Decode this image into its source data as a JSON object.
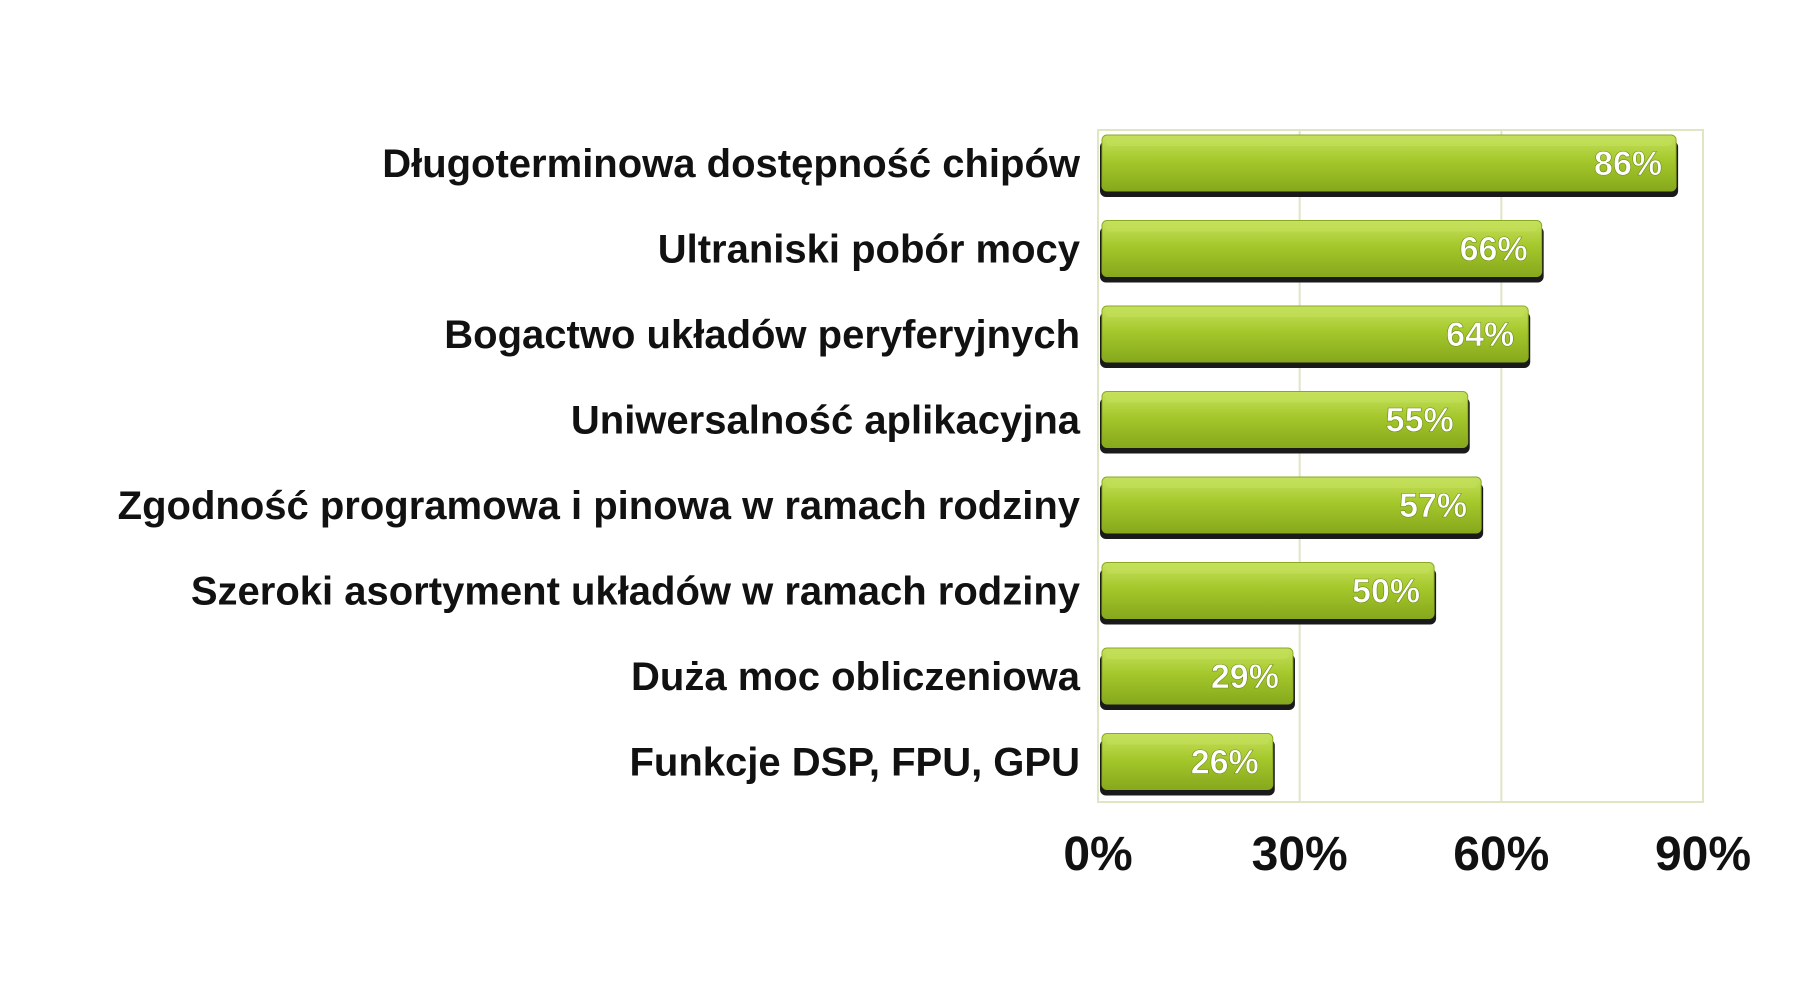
{
  "chart_data": {
    "type": "bar",
    "orientation": "horizontal",
    "categories": [
      "Długoterminowa dostępność chipów",
      "Ultraniski pobór mocy",
      "Bogactwo układów peryferyjnych",
      "Uniwersalność aplikacyjna",
      "Zgodność programowa i pinowa w ramach rodziny",
      "Szeroki asortyment układów w ramach rodziny",
      "Duża moc obliczeniowa",
      "Funkcje DSP, FPU, GPU"
    ],
    "values": [
      86,
      66,
      64,
      55,
      57,
      50,
      29,
      26
    ],
    "value_labels": [
      "86%",
      "66%",
      "64%",
      "55%",
      "57%",
      "50%",
      "29%",
      "26%"
    ],
    "xlim": [
      0,
      90
    ],
    "xticks": [
      0,
      30,
      60,
      90
    ],
    "xtick_labels": [
      "0%",
      "30%",
      "60%",
      "90%"
    ],
    "grid": "vertical",
    "legend": "none",
    "colors": {
      "bar": "#a3c62b",
      "bar_highlight": "#c3e05a",
      "bar_shadow": "#1a1a1a",
      "grid": "#dfe6c4",
      "frame": "#dfe6c4"
    }
  }
}
